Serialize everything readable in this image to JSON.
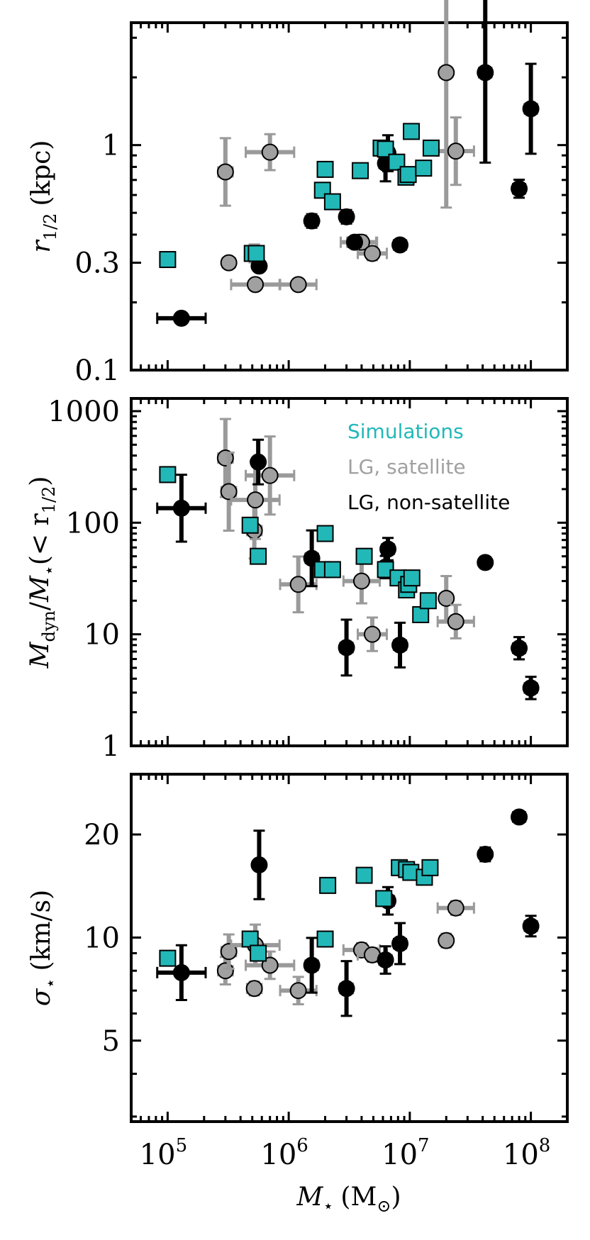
{
  "colors": {
    "simulations": "#22b8b8",
    "satellite": "#a0a0a0",
    "non_satellite": "#000000",
    "satellite_errorbar": "#9a9a9a"
  },
  "legend": {
    "simulations": "Simulations",
    "satellite": "LG, satellite",
    "non_satellite": "LG, non-satellite"
  },
  "xlabel_main": "M",
  "xlabel_sub": "⋆",
  "xlabel_unit": "(M",
  "xlabel_unit_sub": "⊙",
  "xlabel_close": ")",
  "x_ticks": [
    {
      "base": "10",
      "exp": "5",
      "value": 100000
    },
    {
      "base": "10",
      "exp": "6",
      "value": 1000000
    },
    {
      "base": "10",
      "exp": "7",
      "value": 10000000
    },
    {
      "base": "10",
      "exp": "8",
      "value": 100000000
    }
  ],
  "chart_data": [
    {
      "type": "scatter",
      "panel": "top",
      "xscale": "log",
      "yscale": "log",
      "xlim": [
        50000,
        200000000
      ],
      "ylim": [
        0.1,
        3.5
      ],
      "ylabel": "r_1/2 (kpc)",
      "ylabel_parts": {
        "main": "r",
        "sub": "1/2",
        "unit": "(kpc)"
      },
      "y_ticks": [
        {
          "label": "0.1",
          "value": 0.1
        },
        {
          "label": "0.3",
          "value": 0.3
        },
        {
          "label": "1",
          "value": 1
        }
      ],
      "series": [
        {
          "name": "Simulations",
          "marker": "square",
          "points": [
            [
              100000,
              0.31
            ],
            [
              500000,
              0.33
            ],
            [
              540000,
              0.33
            ],
            [
              2000000,
              0.78
            ],
            [
              1900000,
              0.63
            ],
            [
              2300000,
              0.56
            ],
            [
              3900000,
              0.77
            ],
            [
              5800000,
              0.97
            ],
            [
              6300000,
              0.96
            ],
            [
              7800000,
              0.84
            ],
            [
              9300000,
              0.72
            ],
            [
              9700000,
              0.74
            ],
            [
              10300000,
              1.15
            ],
            [
              13000000,
              0.79
            ],
            [
              15000000,
              0.97
            ]
          ]
        },
        {
          "name": "LG, satellite",
          "marker": "circle",
          "points": [
            [
              300000,
              0.76,
              0.06,
              0.15
            ],
            [
              320000,
              0.3,
              0.05,
              0.02
            ],
            [
              520000,
              0.33,
              0.05,
              0.04
            ],
            [
              530000,
              0.24,
              0.2,
              0.01
            ],
            [
              700000,
              0.93,
              0.2,
              0.08
            ],
            [
              1200000,
              0.24,
              0.15,
              0.02
            ],
            [
              3800000,
              0.37,
              0.15,
              0.03
            ],
            [
              4000000,
              0.37,
              0.12,
              0.03
            ],
            [
              4900000,
              0.33,
              0.12,
              0.03
            ],
            [
              20000000,
              2.1,
              0.05,
              0.6
            ],
            [
              24000000,
              0.94,
              0.15,
              0.15
            ]
          ]
        },
        {
          "name": "LG, non-satellite",
          "marker": "circle",
          "points": [
            [
              130000,
              0.17,
              0.2,
              0.005
            ],
            [
              570000,
              0.29,
              0.02,
              0.02
            ],
            [
              1550000,
              0.46,
              0.05,
              0.03
            ],
            [
              3000000,
              0.48,
              0.05,
              0.03
            ],
            [
              3500000,
              0.37,
              0.05,
              0.02
            ],
            [
              6300000,
              0.83,
              0.05,
              0.08
            ],
            [
              6600000,
              0.92,
              0.05,
              0.08
            ],
            [
              8300000,
              0.36,
              0.05,
              0.02
            ],
            [
              42000000,
              2.1,
              0.05,
              0.4
            ],
            [
              80000000,
              0.64,
              0.05,
              0.04
            ],
            [
              100000000,
              1.45,
              0.05,
              0.2
            ]
          ]
        }
      ]
    },
    {
      "type": "scatter",
      "panel": "middle",
      "xscale": "log",
      "yscale": "log",
      "xlim": [
        50000,
        200000000
      ],
      "ylim": [
        1,
        1300
      ],
      "ylabel": "M_dyn/M_⋆(< r_1/2)",
      "ylabel_parts": {
        "m1": "M",
        "sub1": "dyn",
        "slash": "/",
        "m2": "M",
        "sub2": "⋆",
        "paren": "(< r",
        "sub3": "1/2",
        "close": ")"
      },
      "y_ticks": [
        {
          "label": "1",
          "value": 1
        },
        {
          "label": "10",
          "value": 10
        },
        {
          "label": "100",
          "value": 100
        },
        {
          "label": "1000",
          "value": 1000
        }
      ],
      "series": [
        {
          "name": "Simulations",
          "marker": "square",
          "points": [
            [
              100000,
              270
            ],
            [
              480000,
              95
            ],
            [
              560000,
              50
            ],
            [
              2000000,
              80
            ],
            [
              1900000,
              38
            ],
            [
              2300000,
              38
            ],
            [
              4200000,
              50
            ],
            [
              6300000,
              38
            ],
            [
              8000000,
              32
            ],
            [
              9400000,
              25
            ],
            [
              9800000,
              28
            ],
            [
              10400000,
              32
            ],
            [
              12300000,
              15
            ],
            [
              14200000,
              20
            ]
          ]
        },
        {
          "name": "LG, satellite",
          "marker": "circle",
          "points": [
            [
              300000,
              380,
              0.06,
              0.35
            ],
            [
              320000,
              190,
              0.06,
              0.35
            ],
            [
              520000,
              85,
              0.06,
              0.25
            ],
            [
              530000,
              160,
              0.2,
              0.35
            ],
            [
              700000,
              265,
              0.2,
              0.35
            ],
            [
              1200000,
              28,
              0.15,
              0.25
            ],
            [
              4000000,
              30,
              0.15,
              0.2
            ],
            [
              4900000,
              10,
              0.12,
              0.15
            ],
            [
              20000000,
              21,
              0.05,
              0.2
            ],
            [
              24000000,
              13,
              0.15,
              0.15
            ]
          ]
        },
        {
          "name": "LG, non-satellite",
          "marker": "circle",
          "points": [
            [
              130000,
              135,
              0.2,
              0.3
            ],
            [
              560000,
              350,
              0.02,
              0.2
            ],
            [
              1550000,
              48,
              0.05,
              0.25
            ],
            [
              3000000,
              7.6,
              0.05,
              0.25
            ],
            [
              6300000,
              40,
              0.05,
              0.1
            ],
            [
              6600000,
              58,
              0.05,
              0.1
            ],
            [
              8300000,
              8,
              0.05,
              0.2
            ],
            [
              42000000,
              44,
              0.02,
              0.05
            ],
            [
              80000000,
              7.5,
              0.05,
              0.1
            ],
            [
              100000000,
              3.3,
              0.05,
              0.1
            ]
          ]
        }
      ]
    },
    {
      "type": "scatter",
      "panel": "bottom",
      "xscale": "log",
      "yscale": "log",
      "xlim": [
        50000,
        200000000
      ],
      "ylim": [
        2.9,
        30
      ],
      "ylabel": "σ_⋆ (km/s)",
      "ylabel_parts": {
        "main": "σ",
        "sub": "⋆",
        "unit": "(km/s)"
      },
      "y_ticks": [
        {
          "label": "5",
          "value": 5
        },
        {
          "label": "10",
          "value": 10
        },
        {
          "label": "20",
          "value": 20
        }
      ],
      "series": [
        {
          "name": "Simulations",
          "marker": "square",
          "points": [
            [
              100000,
              8.7
            ],
            [
              480000,
              9.9
            ],
            [
              560000,
              9
            ],
            [
              2000000,
              9.9
            ],
            [
              2100000,
              14.2
            ],
            [
              4200000,
              15.2
            ],
            [
              6100000,
              13
            ],
            [
              8200000,
              16
            ],
            [
              9400000,
              15.8
            ],
            [
              10200000,
              15.5
            ],
            [
              13200000,
              15
            ],
            [
              14700000,
              16
            ]
          ]
        },
        {
          "name": "LG, satellite",
          "marker": "circle",
          "points": [
            [
              300000,
              8.0,
              0.06,
              0.04
            ],
            [
              320000,
              9.1,
              0.06,
              0.05
            ],
            [
              520000,
              7.1,
              0.06,
              0.02
            ],
            [
              530000,
              9.5,
              0.2,
              0.06
            ],
            [
              700000,
              8.3,
              0.2,
              0.04
            ],
            [
              1200000,
              7.0,
              0.15,
              0.04
            ],
            [
              4000000,
              9.2,
              0.15,
              0.02
            ],
            [
              4900000,
              8.9,
              0.12,
              0.02
            ],
            [
              20000000,
              9.8,
              0.05,
              0.02
            ],
            [
              24000000,
              12.2,
              0.15,
              0.02
            ]
          ]
        },
        {
          "name": "LG, non-satellite",
          "marker": "circle",
          "points": [
            [
              130000,
              7.9,
              0.2,
              0.08
            ],
            [
              570000,
              16.3,
              0.02,
              0.1
            ],
            [
              1550000,
              8.3,
              0.05,
              0.08
            ],
            [
              3000000,
              7.1,
              0.05,
              0.08
            ],
            [
              6300000,
              8.6,
              0.05,
              0.04
            ],
            [
              6600000,
              12.8,
              0.05,
              0.04
            ],
            [
              8300000,
              9.6,
              0.05,
              0.06
            ],
            [
              42000000,
              17.5,
              0.02,
              0.02
            ],
            [
              80000000,
              22.5,
              0.05,
              0.01
            ],
            [
              100000000,
              10.8,
              0.05,
              0.03
            ]
          ]
        }
      ]
    }
  ]
}
